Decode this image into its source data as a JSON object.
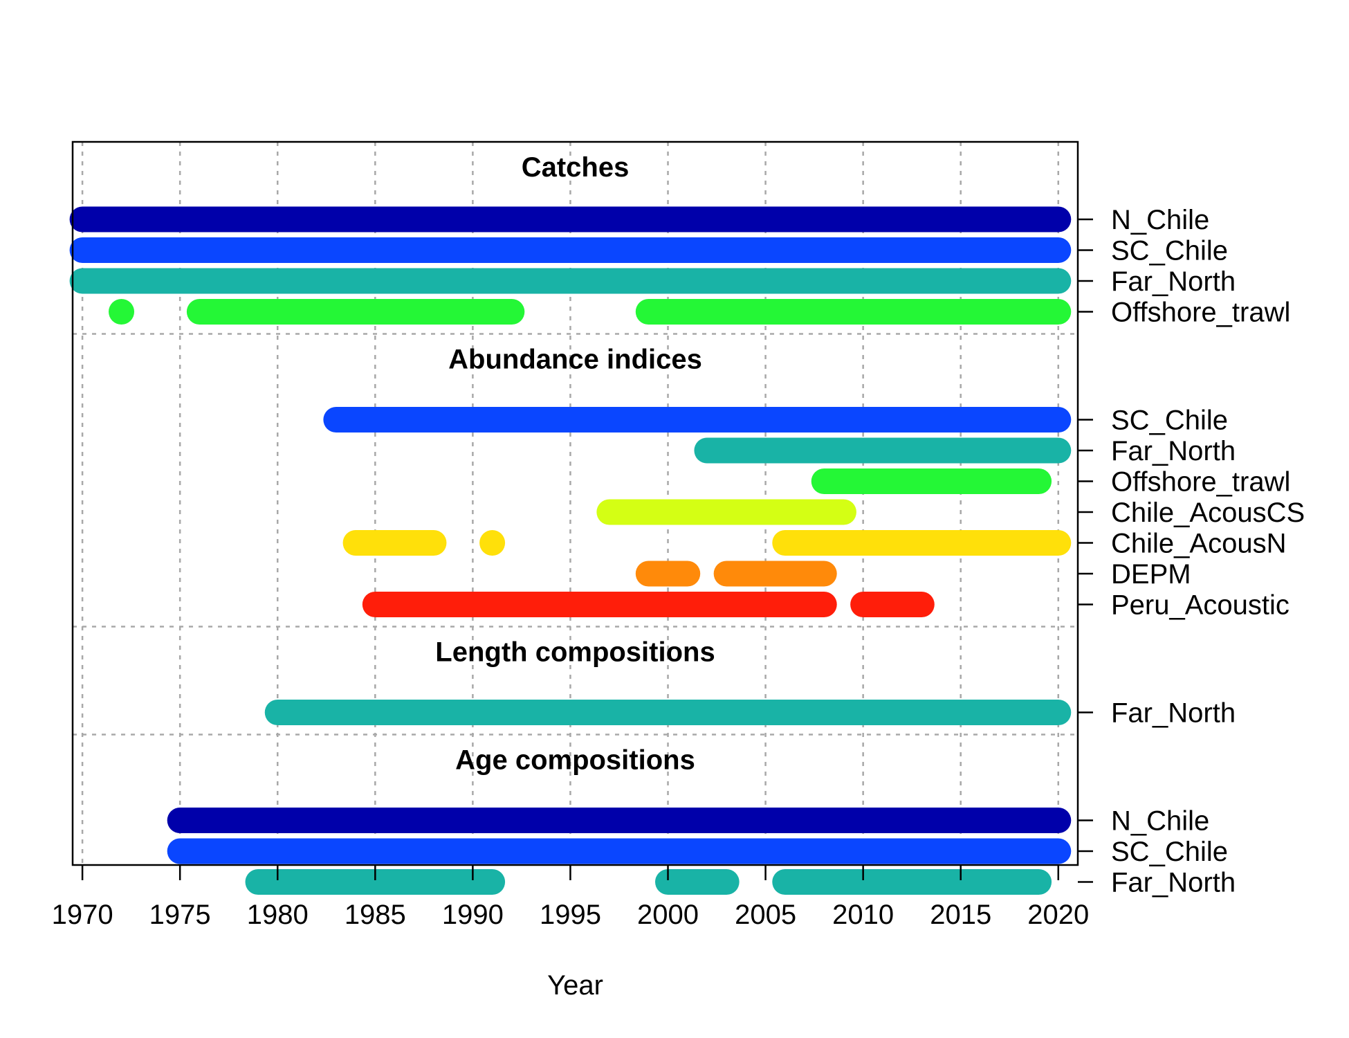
{
  "chart_data": {
    "type": "timeline",
    "xlabel": "Year",
    "xlim": [
      1969.5,
      2021
    ],
    "x_ticks": [
      1970,
      1975,
      1980,
      1985,
      1990,
      1995,
      2000,
      2005,
      2010,
      2015,
      2020
    ],
    "grid": true,
    "sections": [
      {
        "title": "Catches",
        "rows": [
          {
            "label": "N_Chile",
            "color": "#0000AA",
            "segments": [
              [
                1970,
                2020
              ]
            ]
          },
          {
            "label": "SC_Chile",
            "color": "#0A46FF",
            "segments": [
              [
                1970,
                2020
              ]
            ]
          },
          {
            "label": "Far_North",
            "color": "#19B3A6",
            "segments": [
              [
                1970,
                2020
              ]
            ]
          },
          {
            "label": "Offshore_trawl",
            "color": "#24F736",
            "segments": [
              [
                1972,
                1972
              ],
              [
                1976,
                1992
              ],
              [
                1999,
                2020
              ]
            ]
          }
        ]
      },
      {
        "title": "Abundance indices",
        "rows": [
          {
            "label": "SC_Chile",
            "color": "#0A46FF",
            "segments": [
              [
                1983,
                2020
              ]
            ]
          },
          {
            "label": "Far_North",
            "color": "#19B3A6",
            "segments": [
              [
                2002,
                2020
              ]
            ]
          },
          {
            "label": "Offshore_trawl",
            "color": "#24F736",
            "segments": [
              [
                2008,
                2019
              ]
            ]
          },
          {
            "label": "Chile_AcousCS",
            "color": "#D4FF14",
            "segments": [
              [
                1997,
                2009
              ]
            ]
          },
          {
            "label": "Chile_AcousN",
            "color": "#FFE00A",
            "segments": [
              [
                1984,
                1988
              ],
              [
                1991,
                1991
              ],
              [
                2006,
                2020
              ]
            ]
          },
          {
            "label": "DEPM",
            "color": "#FF8A0A",
            "segments": [
              [
                1999,
                2001
              ],
              [
                2003,
                2008
              ]
            ]
          },
          {
            "label": "Peru_Acoustic",
            "color": "#FF1E0A",
            "segments": [
              [
                1985,
                2008
              ],
              [
                2010,
                2013
              ]
            ]
          }
        ]
      },
      {
        "title": "Length compositions",
        "rows": [
          {
            "label": "Far_North",
            "color": "#19B3A6",
            "segments": [
              [
                1980,
                2020
              ]
            ]
          }
        ]
      },
      {
        "title": "Age compositions",
        "rows": [
          {
            "label": "N_Chile",
            "color": "#0000AA",
            "segments": [
              [
                1975,
                2020
              ]
            ]
          },
          {
            "label": "SC_Chile",
            "color": "#0A46FF",
            "segments": [
              [
                1975,
                2020
              ]
            ]
          },
          {
            "label": "Far_North",
            "color": "#19B3A6",
            "segments": [
              [
                1979,
                1991
              ],
              [
                2000,
                2003
              ],
              [
                2006,
                2019
              ]
            ]
          }
        ]
      }
    ]
  }
}
